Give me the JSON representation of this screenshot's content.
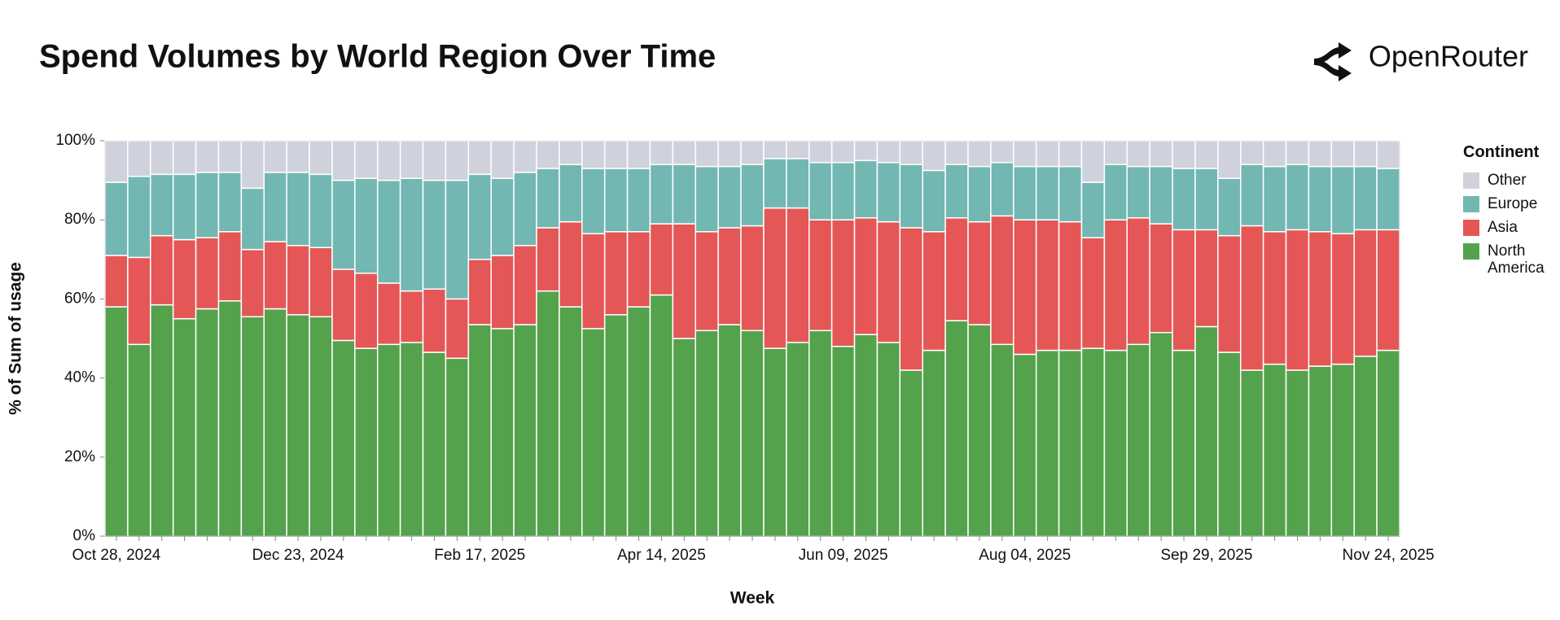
{
  "header": {
    "brand": "OpenRouter"
  },
  "chart_data": {
    "type": "stacked_bar",
    "title": "Spend Volumes by World Region Over Time",
    "x_label": "Week",
    "y_label": "% of Sum of usage",
    "legend_title": "Continent",
    "categories": [
      "Oct 28, 2024",
      null,
      null,
      null,
      null,
      null,
      null,
      null,
      "Dec 23, 2024",
      null,
      null,
      null,
      null,
      null,
      null,
      null,
      "Feb 17, 2025",
      null,
      null,
      null,
      null,
      null,
      null,
      null,
      "Apr 14, 2025",
      null,
      null,
      null,
      null,
      null,
      null,
      null,
      "Jun 09, 2025",
      null,
      null,
      null,
      null,
      null,
      null,
      null,
      "Aug 04, 2025",
      null,
      null,
      null,
      null,
      null,
      null,
      null,
      "Sep 29, 2025",
      null,
      null,
      null,
      null,
      null,
      null,
      null,
      "Nov 24, 2025"
    ],
    "series": [
      {
        "name": "North America",
        "color": "#54a24b",
        "values": [
          58,
          48.5,
          58.5,
          55,
          57.5,
          59.5,
          55.5,
          57.5,
          56,
          55.5,
          49.5,
          47.5,
          48.5,
          49,
          46.5,
          45,
          53.5,
          52.5,
          53.5,
          62,
          58,
          52.5,
          56,
          58,
          61,
          50,
          52,
          53.5,
          52,
          47.5,
          49,
          52,
          48,
          51,
          49,
          42,
          47,
          54.5,
          53.5,
          48.5,
          46,
          47,
          47,
          47.5,
          47,
          48.5,
          51.5,
          47,
          53,
          46.5,
          42,
          43.5,
          42,
          43,
          43.5,
          45.5,
          47
        ]
      },
      {
        "name": "Asia",
        "color": "#e45756",
        "values": [
          13,
          22,
          17.5,
          20,
          18,
          17.5,
          17,
          17,
          17.5,
          17.5,
          18,
          19,
          15.5,
          13,
          16,
          15,
          16.5,
          18.5,
          20,
          16,
          21.5,
          24,
          21,
          19,
          18,
          29,
          25,
          24.5,
          26.5,
          35.5,
          34,
          28,
          32,
          29.5,
          30.5,
          36,
          30,
          26,
          26,
          32.5,
          34,
          33,
          32.5,
          28,
          33,
          32,
          27.5,
          30.5,
          24.5,
          29.5,
          36.5,
          33.5,
          35.5,
          34,
          33,
          32,
          30.5
        ]
      },
      {
        "name": "Europe",
        "color": "#72b7b2",
        "values": [
          18.5,
          20.5,
          15.5,
          16.5,
          16.5,
          15,
          15.5,
          17.5,
          18.5,
          18.5,
          22.5,
          24,
          26,
          28.5,
          27.5,
          30,
          21.5,
          19.5,
          18.5,
          15,
          14.5,
          16.5,
          16,
          16,
          15,
          15,
          16.5,
          15.5,
          15.5,
          12.5,
          12.5,
          14.5,
          14.5,
          14.5,
          15,
          16,
          15.5,
          13.5,
          14,
          13.5,
          13.5,
          13.5,
          14,
          14,
          14,
          13,
          14.5,
          15.5,
          15.5,
          14.5,
          15.5,
          16.5,
          16.5,
          16.5,
          17,
          16,
          15.5
        ]
      },
      {
        "name": "Other",
        "color": "#cfd2dc",
        "values": [
          10.5,
          9,
          8.5,
          8.5,
          8,
          8,
          12,
          8,
          8,
          8.5,
          10,
          9.5,
          10,
          9.5,
          10,
          10,
          8.5,
          9.5,
          8,
          7,
          6,
          7,
          7,
          7,
          6,
          6,
          6.5,
          6.5,
          6,
          4.5,
          4.5,
          5.5,
          5.5,
          5,
          5.5,
          6,
          7.5,
          6,
          6.5,
          5.5,
          6.5,
          6.5,
          6.5,
          10.5,
          6,
          6.5,
          6.5,
          7,
          7,
          9.5,
          6,
          6.5,
          6,
          6.5,
          6.5,
          6.5,
          7
        ]
      }
    ],
    "ylim": [
      0,
      100
    ],
    "yticks": [
      {
        "value": 0,
        "label": "0%"
      },
      {
        "value": 20,
        "label": "20%"
      },
      {
        "value": 40,
        "label": "40%"
      },
      {
        "value": 60,
        "label": "60%"
      },
      {
        "value": 80,
        "label": "80%"
      },
      {
        "value": 100,
        "label": "100%"
      }
    ],
    "grid": false
  }
}
